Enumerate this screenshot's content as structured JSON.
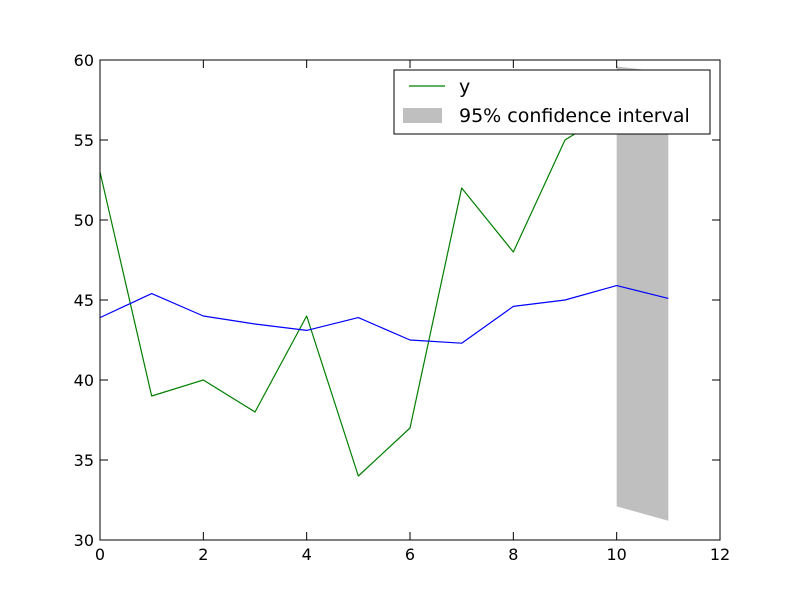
{
  "chart_data": {
    "type": "line",
    "title": "",
    "xlabel": "",
    "ylabel": "",
    "xlim": [
      0,
      12
    ],
    "ylim": [
      30,
      60
    ],
    "grid": false,
    "legend_position": "top-right",
    "xticks": [
      "0",
      "2",
      "4",
      "6",
      "8",
      "10",
      "12"
    ],
    "yticks": [
      "30",
      "35",
      "40",
      "45",
      "50",
      "55",
      "60"
    ],
    "series": [
      {
        "name": "y",
        "color": "#007f00",
        "x": [
          0,
          1,
          2,
          3,
          4,
          5,
          6,
          7,
          8,
          9,
          10,
          11
        ],
        "values": [
          53,
          39,
          40,
          38,
          44,
          34,
          37,
          52,
          48,
          55,
          57,
          59
        ]
      },
      {
        "name": "",
        "color": "#0000ff",
        "x": [
          0,
          1,
          2,
          3,
          4,
          5,
          6,
          7,
          8,
          9,
          10,
          11
        ],
        "values": [
          43.9,
          45.4,
          44.0,
          43.5,
          43.1,
          43.9,
          42.5,
          42.3,
          44.6,
          45.0,
          45.9,
          45.1
        ]
      }
    ],
    "confidence_interval": {
      "name": "95% confidence interval",
      "color": "#bfbfbf",
      "x": [
        10,
        11
      ],
      "lower": [
        32.1,
        31.2
      ],
      "upper": [
        59.6,
        59.2
      ]
    }
  }
}
